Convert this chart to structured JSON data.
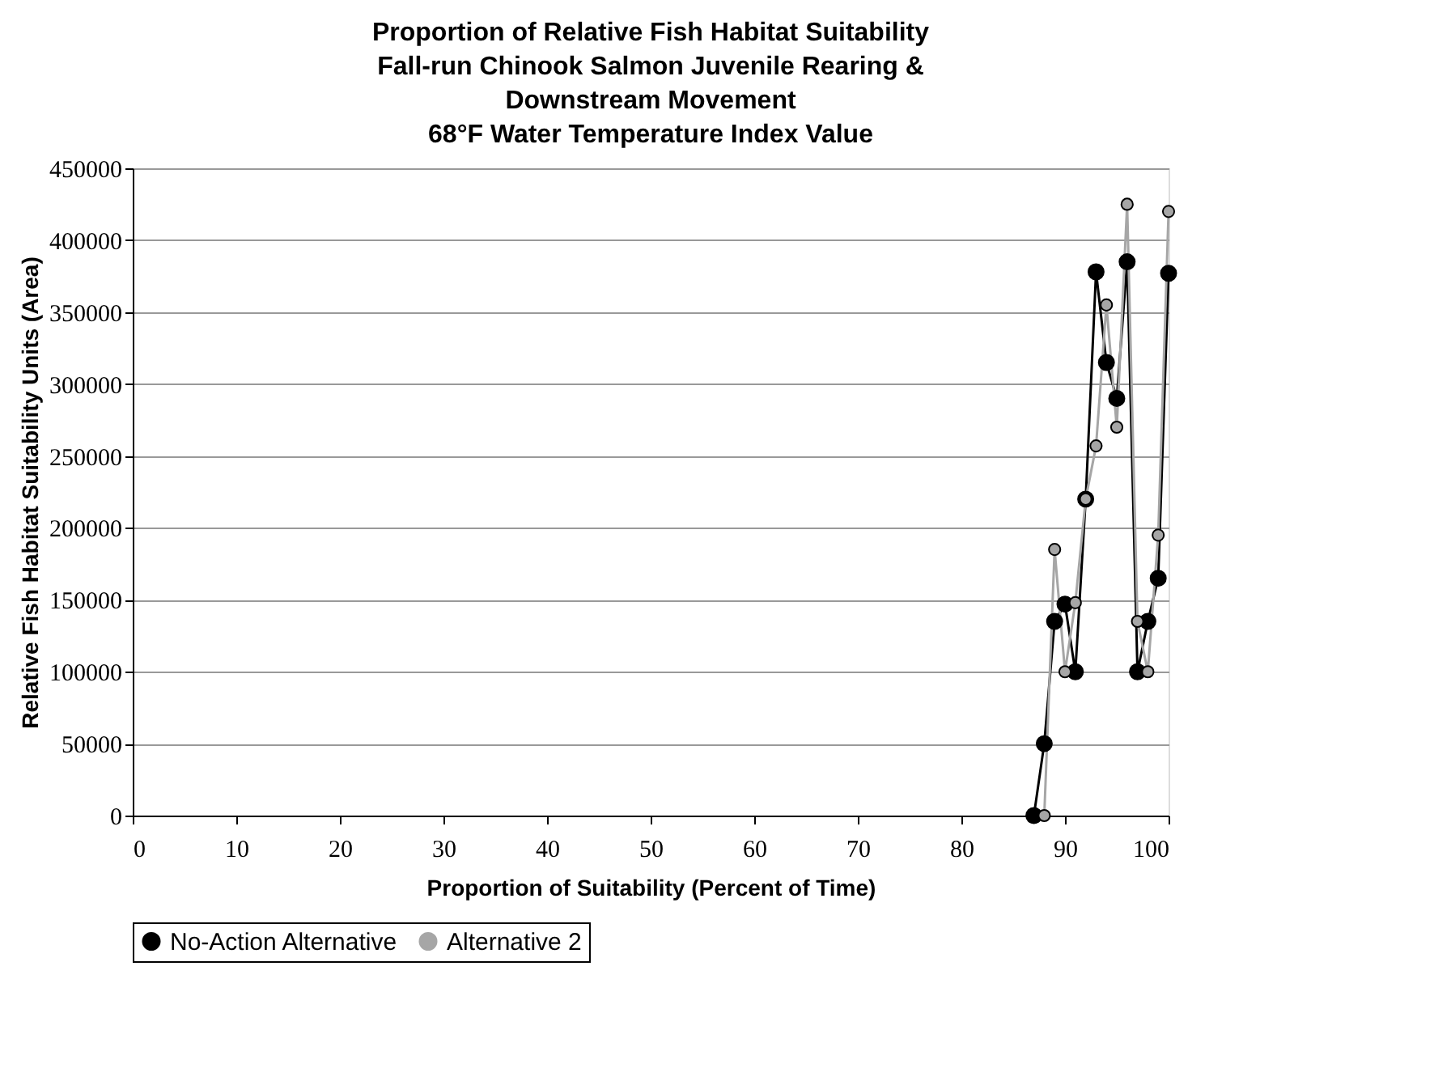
{
  "chart_data": {
    "type": "line",
    "title": [
      "Proportion of Relative Fish Habitat Suitability",
      "Fall-run Chinook Salmon Juvenile Rearing &",
      "Downstream Movement",
      "68°F Water Temperature Index Value"
    ],
    "xlabel": "Proportion of Suitability (Percent of Time)",
    "ylabel": "Relative Fish Habitat Suitability Units (Area)",
    "series": [
      {
        "name": "No-Action Alternative",
        "color": "#000000",
        "x": [
          87,
          88,
          89,
          90,
          91,
          92,
          93,
          94,
          95,
          96,
          97,
          98,
          99,
          100
        ],
        "values": [
          0,
          50000,
          135000,
          147000,
          100000,
          220000,
          378000,
          315000,
          290000,
          385000,
          100000,
          135000,
          165000,
          377000
        ]
      },
      {
        "name": "Alternative 2",
        "color": "#a6a6a6",
        "x": [
          88,
          89,
          90,
          91,
          92,
          93,
          94,
          95,
          96,
          97,
          98,
          99,
          100
        ],
        "values": [
          0,
          185000,
          100000,
          148000,
          220000,
          257000,
          355000,
          270000,
          425000,
          135000,
          100000,
          195000,
          420000
        ]
      }
    ],
    "xlim": [
      0,
      100
    ],
    "xticks": [
      0,
      10,
      20,
      30,
      40,
      50,
      60,
      70,
      80,
      90,
      100
    ],
    "ylim": [
      0,
      450000
    ],
    "yticks": [
      0,
      50000,
      100000,
      150000,
      200000,
      250000,
      300000,
      350000,
      400000,
      450000
    ],
    "grid": "y",
    "legend": "bottom",
    "marker": "circle",
    "line_style": "solid"
  }
}
